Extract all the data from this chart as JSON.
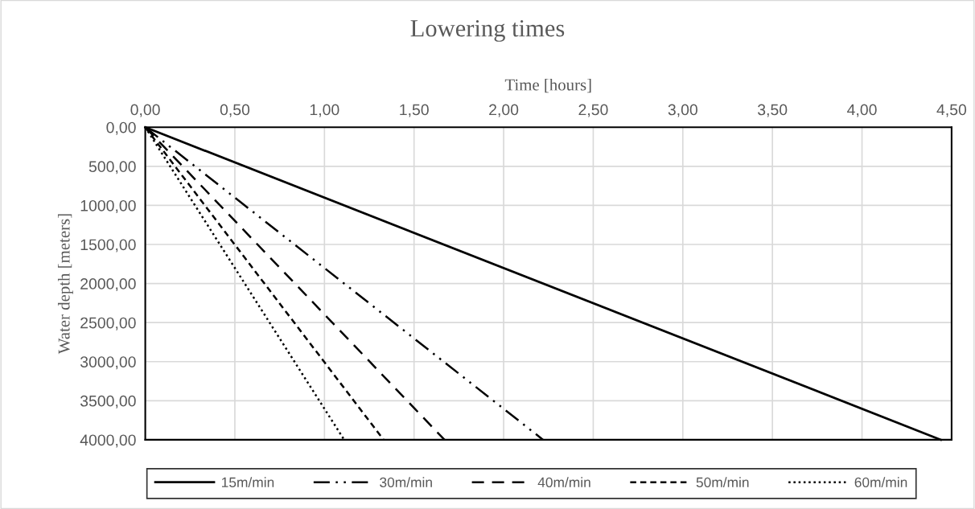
{
  "chart_data": {
    "type": "line",
    "title": "Lowering times",
    "xlabel": "Time [hours]",
    "ylabel": "Water depth [meters]",
    "series": [
      {
        "name": "15m/min",
        "color": "#000000",
        "line_style": "solid",
        "x": [
          0,
          4.44
        ],
        "values": [
          0,
          4000
        ]
      },
      {
        "name": "30m/min",
        "color": "#000000",
        "line_style": "dashdot",
        "x": [
          0,
          2.22
        ],
        "values": [
          0,
          4000
        ]
      },
      {
        "name": "40m/min",
        "color": "#000000",
        "line_style": "dashed",
        "x": [
          0,
          1.67
        ],
        "values": [
          0,
          4000
        ]
      },
      {
        "name": "50m/min",
        "color": "#000000",
        "line_style": "shortdash",
        "x": [
          0,
          1.33
        ],
        "values": [
          0,
          4000
        ]
      },
      {
        "name": "60m/min",
        "color": "#000000",
        "line_style": "dotted",
        "x": [
          0,
          1.11
        ],
        "values": [
          0,
          4000
        ]
      }
    ],
    "xlim": [
      0,
      4.5
    ],
    "xticks": [
      {
        "value": 0,
        "label": "0,00"
      },
      {
        "value": 0.5,
        "label": "0,50"
      },
      {
        "value": 1,
        "label": "1,00"
      },
      {
        "value": 1.5,
        "label": "1,50"
      },
      {
        "value": 2,
        "label": "2,00"
      },
      {
        "value": 2.5,
        "label": "2,50"
      },
      {
        "value": 3,
        "label": "3,00"
      },
      {
        "value": 3.5,
        "label": "3,50"
      },
      {
        "value": 4,
        "label": "4,00"
      },
      {
        "value": 4.5,
        "label": "4,50"
      }
    ],
    "ylim": [
      4000,
      0
    ],
    "yticks": [
      {
        "value": 0,
        "label": "0,00"
      },
      {
        "value": 500,
        "label": "500,00"
      },
      {
        "value": 1000,
        "label": "1000,00"
      },
      {
        "value": 1500,
        "label": "1500,00"
      },
      {
        "value": 2000,
        "label": "2000,00"
      },
      {
        "value": 2500,
        "label": "2500,00"
      },
      {
        "value": 3000,
        "label": "3000,00"
      },
      {
        "value": 3500,
        "label": "3500,00"
      },
      {
        "value": 4000,
        "label": "4000,00"
      }
    ],
    "grid": true,
    "legend": "bottom",
    "marker": "none"
  }
}
